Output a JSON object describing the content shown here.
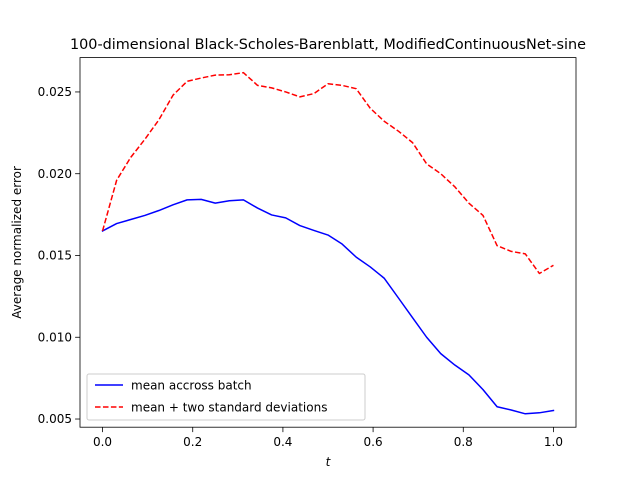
{
  "chart_data": {
    "type": "line",
    "title": "100-dimensional Black-Scholes-Barenblatt, ModifiedContinuousNet-sine",
    "xlabel": "t",
    "ylabel": "Average normalized error",
    "xlim": [
      -0.05,
      1.05
    ],
    "ylim": [
      0.0045,
      0.0271
    ],
    "xticks": [
      0.0,
      0.2,
      0.4,
      0.6,
      0.8,
      1.0
    ],
    "xtick_labels": [
      "0.0",
      "0.2",
      "0.4",
      "0.6",
      "0.8",
      "1.0"
    ],
    "yticks": [
      0.005,
      0.01,
      0.015,
      0.02,
      0.025
    ],
    "ytick_labels": [
      "0.005",
      "0.010",
      "0.015",
      "0.020",
      "0.025"
    ],
    "grid": false,
    "legend": "lower-left",
    "x": [
      0.0,
      0.03125,
      0.0625,
      0.09375,
      0.125,
      0.15625,
      0.1875,
      0.21875,
      0.25,
      0.28125,
      0.3125,
      0.34375,
      0.375,
      0.40625,
      0.4375,
      0.46875,
      0.5,
      0.53125,
      0.5625,
      0.59375,
      0.625,
      0.65625,
      0.6875,
      0.71875,
      0.75,
      0.78125,
      0.8125,
      0.84375,
      0.875,
      0.90625,
      0.9375,
      0.96875,
      1.0
    ],
    "series": [
      {
        "name": "mean accross batch",
        "color": "#0000ff",
        "dash": "solid",
        "values": [
          0.0165,
          0.01695,
          0.0172,
          0.01745,
          0.01775,
          0.0181,
          0.0184,
          0.01843,
          0.0182,
          0.01835,
          0.0184,
          0.0179,
          0.01748,
          0.0173,
          0.01683,
          0.01653,
          0.01625,
          0.0157,
          0.0149,
          0.0143,
          0.0136,
          0.0124,
          0.0112,
          0.01,
          0.009,
          0.0083,
          0.0077,
          0.0068,
          0.00575,
          0.00555,
          0.00532,
          0.00538,
          0.00552
        ]
      },
      {
        "name": "mean + two standard deviations",
        "color": "#ff0000",
        "dash": "dashed",
        "values": [
          0.0165,
          0.0196,
          0.021,
          0.0221,
          0.0233,
          0.0248,
          0.02565,
          0.02585,
          0.02603,
          0.02605,
          0.02618,
          0.0254,
          0.02525,
          0.025,
          0.0247,
          0.0249,
          0.0255,
          0.0254,
          0.0252,
          0.024,
          0.0232,
          0.0226,
          0.0219,
          0.0206,
          0.02,
          0.0192,
          0.0182,
          0.01745,
          0.0156,
          0.01525,
          0.0151,
          0.0139,
          0.0144
        ]
      }
    ]
  }
}
